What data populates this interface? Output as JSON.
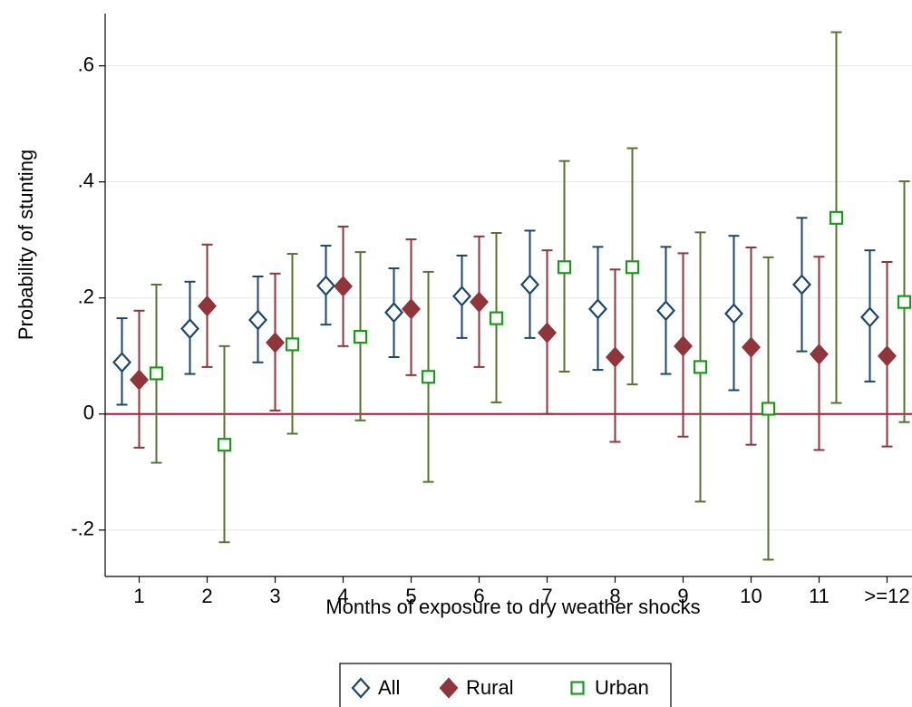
{
  "chart_data": {
    "type": "errorbar",
    "x_label": "Months of exposure to dry weather shocks",
    "y_label": "Probability of stunting",
    "categories": [
      "1",
      "2",
      "3",
      "4",
      "5",
      "6",
      "7",
      "8",
      "9",
      "10",
      "11",
      ">=12"
    ],
    "ylim": [
      -0.28,
      0.69
    ],
    "yticks": [
      {
        "value": -0.2,
        "label": "-.2"
      },
      0,
      {
        "value": 0.2,
        "label": ".2"
      },
      {
        "value": 0.4,
        "label": ".4"
      },
      {
        "value": 0.6,
        "label": ".6"
      }
    ],
    "grid": true,
    "reference_line": {
      "value": 0,
      "color": "#b5123c"
    },
    "legend": "bottom",
    "series": [
      {
        "name": "All",
        "color": "#1a476f",
        "marker": "hollow-diamond",
        "values": [
          0.089,
          0.147,
          0.162,
          0.221,
          0.175,
          0.203,
          0.223,
          0.181,
          0.178,
          0.173,
          0.223,
          0.167
        ],
        "lower": [
          0.016,
          0.069,
          0.089,
          0.154,
          0.098,
          0.131,
          0.131,
          0.076,
          0.069,
          0.041,
          0.108,
          0.056
        ],
        "upper": [
          0.165,
          0.228,
          0.237,
          0.29,
          0.251,
          0.273,
          0.316,
          0.288,
          0.288,
          0.307,
          0.338,
          0.282
        ]
      },
      {
        "name": "Rural",
        "color": "#90353b",
        "marker": "filled-diamond",
        "values": [
          0.059,
          0.186,
          0.123,
          0.22,
          0.181,
          0.193,
          0.14,
          0.098,
          0.117,
          0.115,
          0.103,
          0.1
        ],
        "lower": [
          -0.058,
          0.081,
          0.006,
          0.117,
          0.067,
          0.081,
          0.0,
          -0.048,
          -0.039,
          -0.053,
          -0.062,
          -0.056
        ],
        "upper": [
          0.178,
          0.292,
          0.242,
          0.323,
          0.301,
          0.306,
          0.282,
          0.249,
          0.277,
          0.287,
          0.271,
          0.262
        ]
      },
      {
        "name": "Urban",
        "color": "#55752f",
        "marker": "hollow-square",
        "values": [
          0.07,
          -0.053,
          0.12,
          0.133,
          0.064,
          0.165,
          0.253,
          0.253,
          0.081,
          0.009,
          0.338,
          0.193
        ],
        "lower": [
          -0.084,
          -0.221,
          -0.034,
          -0.011,
          -0.117,
          0.02,
          0.073,
          0.051,
          -0.151,
          -0.251,
          0.019,
          -0.014
        ],
        "upper": [
          0.223,
          0.117,
          0.276,
          0.279,
          0.245,
          0.312,
          0.436,
          0.458,
          0.313,
          0.27,
          0.658,
          0.401
        ]
      }
    ]
  }
}
